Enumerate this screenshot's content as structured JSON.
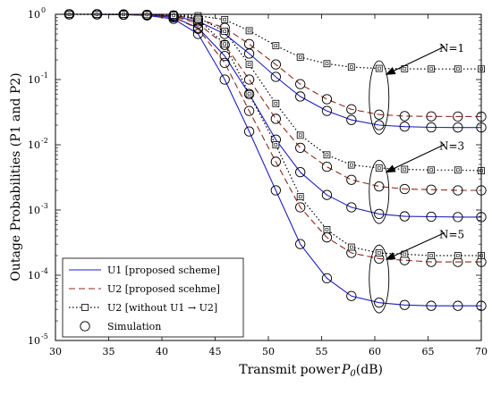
{
  "chart_data": {
    "type": "line",
    "xlabel": "Transmit power P0(dB)",
    "ylabel": "Outage Probabilities (P1 and P2)",
    "xlim": [
      30,
      70
    ],
    "ylim": [
      1e-05,
      1
    ],
    "yscale": "log",
    "grid": false,
    "legend_position": "bottom-left",
    "x_ticks": [
      "30",
      "35",
      "40",
      "45",
      "50",
      "55",
      "60",
      "65",
      "70"
    ],
    "y_ticks": [
      "10",
      "10",
      "10",
      "10",
      "10",
      "10"
    ],
    "y_tick_exponents": [
      "-5",
      "-4",
      "-3",
      "-2",
      "-1",
      "0"
    ],
    "legend": [
      {
        "label": "U1 [proposed scheme]",
        "style": "solid",
        "color": "#1f1fbf"
      },
      {
        "label": "U2 [proposed scehme]",
        "style": "dashed",
        "color": "#8b2a1a"
      },
      {
        "label": "U2 [without U1 → U2]",
        "style": "dotted-square",
        "color": "#000000"
      },
      {
        "label": "Simulation",
        "style": "circle-marker",
        "color": "#000000"
      }
    ],
    "annotations": [
      "N=1",
      "N=3",
      "N=5"
    ],
    "series": [
      {
        "group": "N=1",
        "kind": "u1",
        "x": [
          31.3,
          33.9,
          36.4,
          38.6,
          41.1,
          43.4,
          45.9,
          48.2,
          50.7,
          53.0,
          55.5,
          57.8,
          60.4,
          62.8,
          65.3,
          67.8,
          70
        ],
        "values": [
          1.0,
          1.0,
          0.99,
          0.98,
          0.94,
          0.78,
          0.5,
          0.25,
          0.11,
          0.055,
          0.033,
          0.024,
          0.02,
          0.019,
          0.0185,
          0.0184,
          0.0184
        ]
      },
      {
        "group": "N=1",
        "kind": "u2",
        "x": [
          31.3,
          33.9,
          36.4,
          38.6,
          41.1,
          43.4,
          45.9,
          48.2,
          50.7,
          53.0,
          55.5,
          57.8,
          60.4,
          62.8,
          65.3,
          67.8,
          70
        ],
        "values": [
          1.0,
          1.0,
          0.99,
          0.98,
          0.96,
          0.85,
          0.62,
          0.35,
          0.17,
          0.085,
          0.05,
          0.035,
          0.029,
          0.0275,
          0.0272,
          0.0271,
          0.027
        ]
      },
      {
        "group": "N=1",
        "kind": "u2w",
        "x": [
          31.3,
          33.9,
          36.4,
          38.6,
          41.1,
          43.4,
          45.9,
          48.2,
          50.7,
          53.0,
          55.5,
          57.8,
          60.4,
          62.8,
          65.3,
          67.8,
          70
        ],
        "values": [
          1.0,
          1.0,
          1.0,
          0.99,
          0.99,
          0.95,
          0.83,
          0.56,
          0.33,
          0.22,
          0.175,
          0.155,
          0.148,
          0.146,
          0.145,
          0.145,
          0.145
        ]
      },
      {
        "group": "N=3",
        "kind": "u1",
        "x": [
          31.3,
          33.9,
          36.4,
          38.6,
          41.1,
          43.4,
          45.9,
          48.2,
          50.7,
          53.0,
          55.5,
          57.8,
          60.4,
          62.8,
          65.3,
          67.8,
          70
        ],
        "values": [
          1.0,
          1.0,
          0.99,
          0.97,
          0.9,
          0.62,
          0.23,
          0.06,
          0.012,
          0.0038,
          0.0017,
          0.0011,
          0.00087,
          0.0008,
          0.00079,
          0.00078,
          0.00078
        ]
      },
      {
        "group": "N=3",
        "kind": "u2",
        "x": [
          31.3,
          33.9,
          36.4,
          38.6,
          41.1,
          43.4,
          45.9,
          48.2,
          50.7,
          53.0,
          55.5,
          57.8,
          60.4,
          62.8,
          65.3,
          67.8,
          70
        ],
        "values": [
          1.0,
          1.0,
          0.99,
          0.98,
          0.93,
          0.72,
          0.34,
          0.1,
          0.025,
          0.009,
          0.0046,
          0.0029,
          0.0023,
          0.0021,
          0.00205,
          0.002,
          0.002
        ]
      },
      {
        "group": "N=3",
        "kind": "u2w",
        "x": [
          31.3,
          33.9,
          36.4,
          38.6,
          41.1,
          43.4,
          45.9,
          48.2,
          50.7,
          53.0,
          55.5,
          57.8,
          60.4,
          62.8,
          65.3,
          67.8,
          70
        ],
        "values": [
          1.0,
          1.0,
          1.0,
          0.99,
          0.98,
          0.88,
          0.55,
          0.17,
          0.043,
          0.014,
          0.007,
          0.0049,
          0.0044,
          0.0042,
          0.0041,
          0.0041,
          0.004
        ]
      },
      {
        "group": "N=5",
        "kind": "u1",
        "x": [
          31.3,
          33.9,
          36.4,
          38.6,
          41.1,
          43.4,
          45.9,
          48.2,
          50.7,
          53.0,
          55.5,
          57.8,
          60.4,
          62.8,
          65.3,
          67.8,
          70
        ],
        "values": [
          1.0,
          1.0,
          0.99,
          0.96,
          0.85,
          0.5,
          0.1,
          0.016,
          0.002,
          0.0003,
          9e-05,
          4.8e-05,
          3.8e-05,
          3.5e-05,
          3.4e-05,
          3.4e-05,
          3.4e-05
        ]
      },
      {
        "group": "N=5",
        "kind": "u2",
        "x": [
          31.3,
          33.9,
          36.4,
          38.6,
          41.1,
          43.4,
          45.9,
          48.2,
          50.7,
          53.0,
          55.5,
          57.8,
          60.4,
          62.8,
          65.3,
          67.8,
          70
        ],
        "values": [
          1.0,
          1.0,
          0.99,
          0.97,
          0.9,
          0.6,
          0.18,
          0.033,
          0.0055,
          0.0011,
          0.00038,
          0.00022,
          0.00018,
          0.00017,
          0.00016,
          0.00016,
          0.00016
        ]
      },
      {
        "group": "N=5",
        "kind": "u2w",
        "x": [
          31.3,
          33.9,
          36.4,
          38.6,
          41.1,
          43.4,
          45.9,
          48.2,
          50.7,
          53.0,
          55.5,
          57.8,
          60.4,
          62.8,
          65.3,
          67.8,
          70
        ],
        "values": [
          1.0,
          1.0,
          1.0,
          0.99,
          0.97,
          0.84,
          0.35,
          0.06,
          0.01,
          0.0016,
          0.0005,
          0.00027,
          0.00022,
          0.00021,
          0.0002,
          0.0002,
          0.0002
        ]
      }
    ],
    "colors": {
      "u1": "#1f1fbf",
      "u2": "#8b2a1a",
      "u2w": "#000000",
      "axis": "#000000"
    }
  }
}
